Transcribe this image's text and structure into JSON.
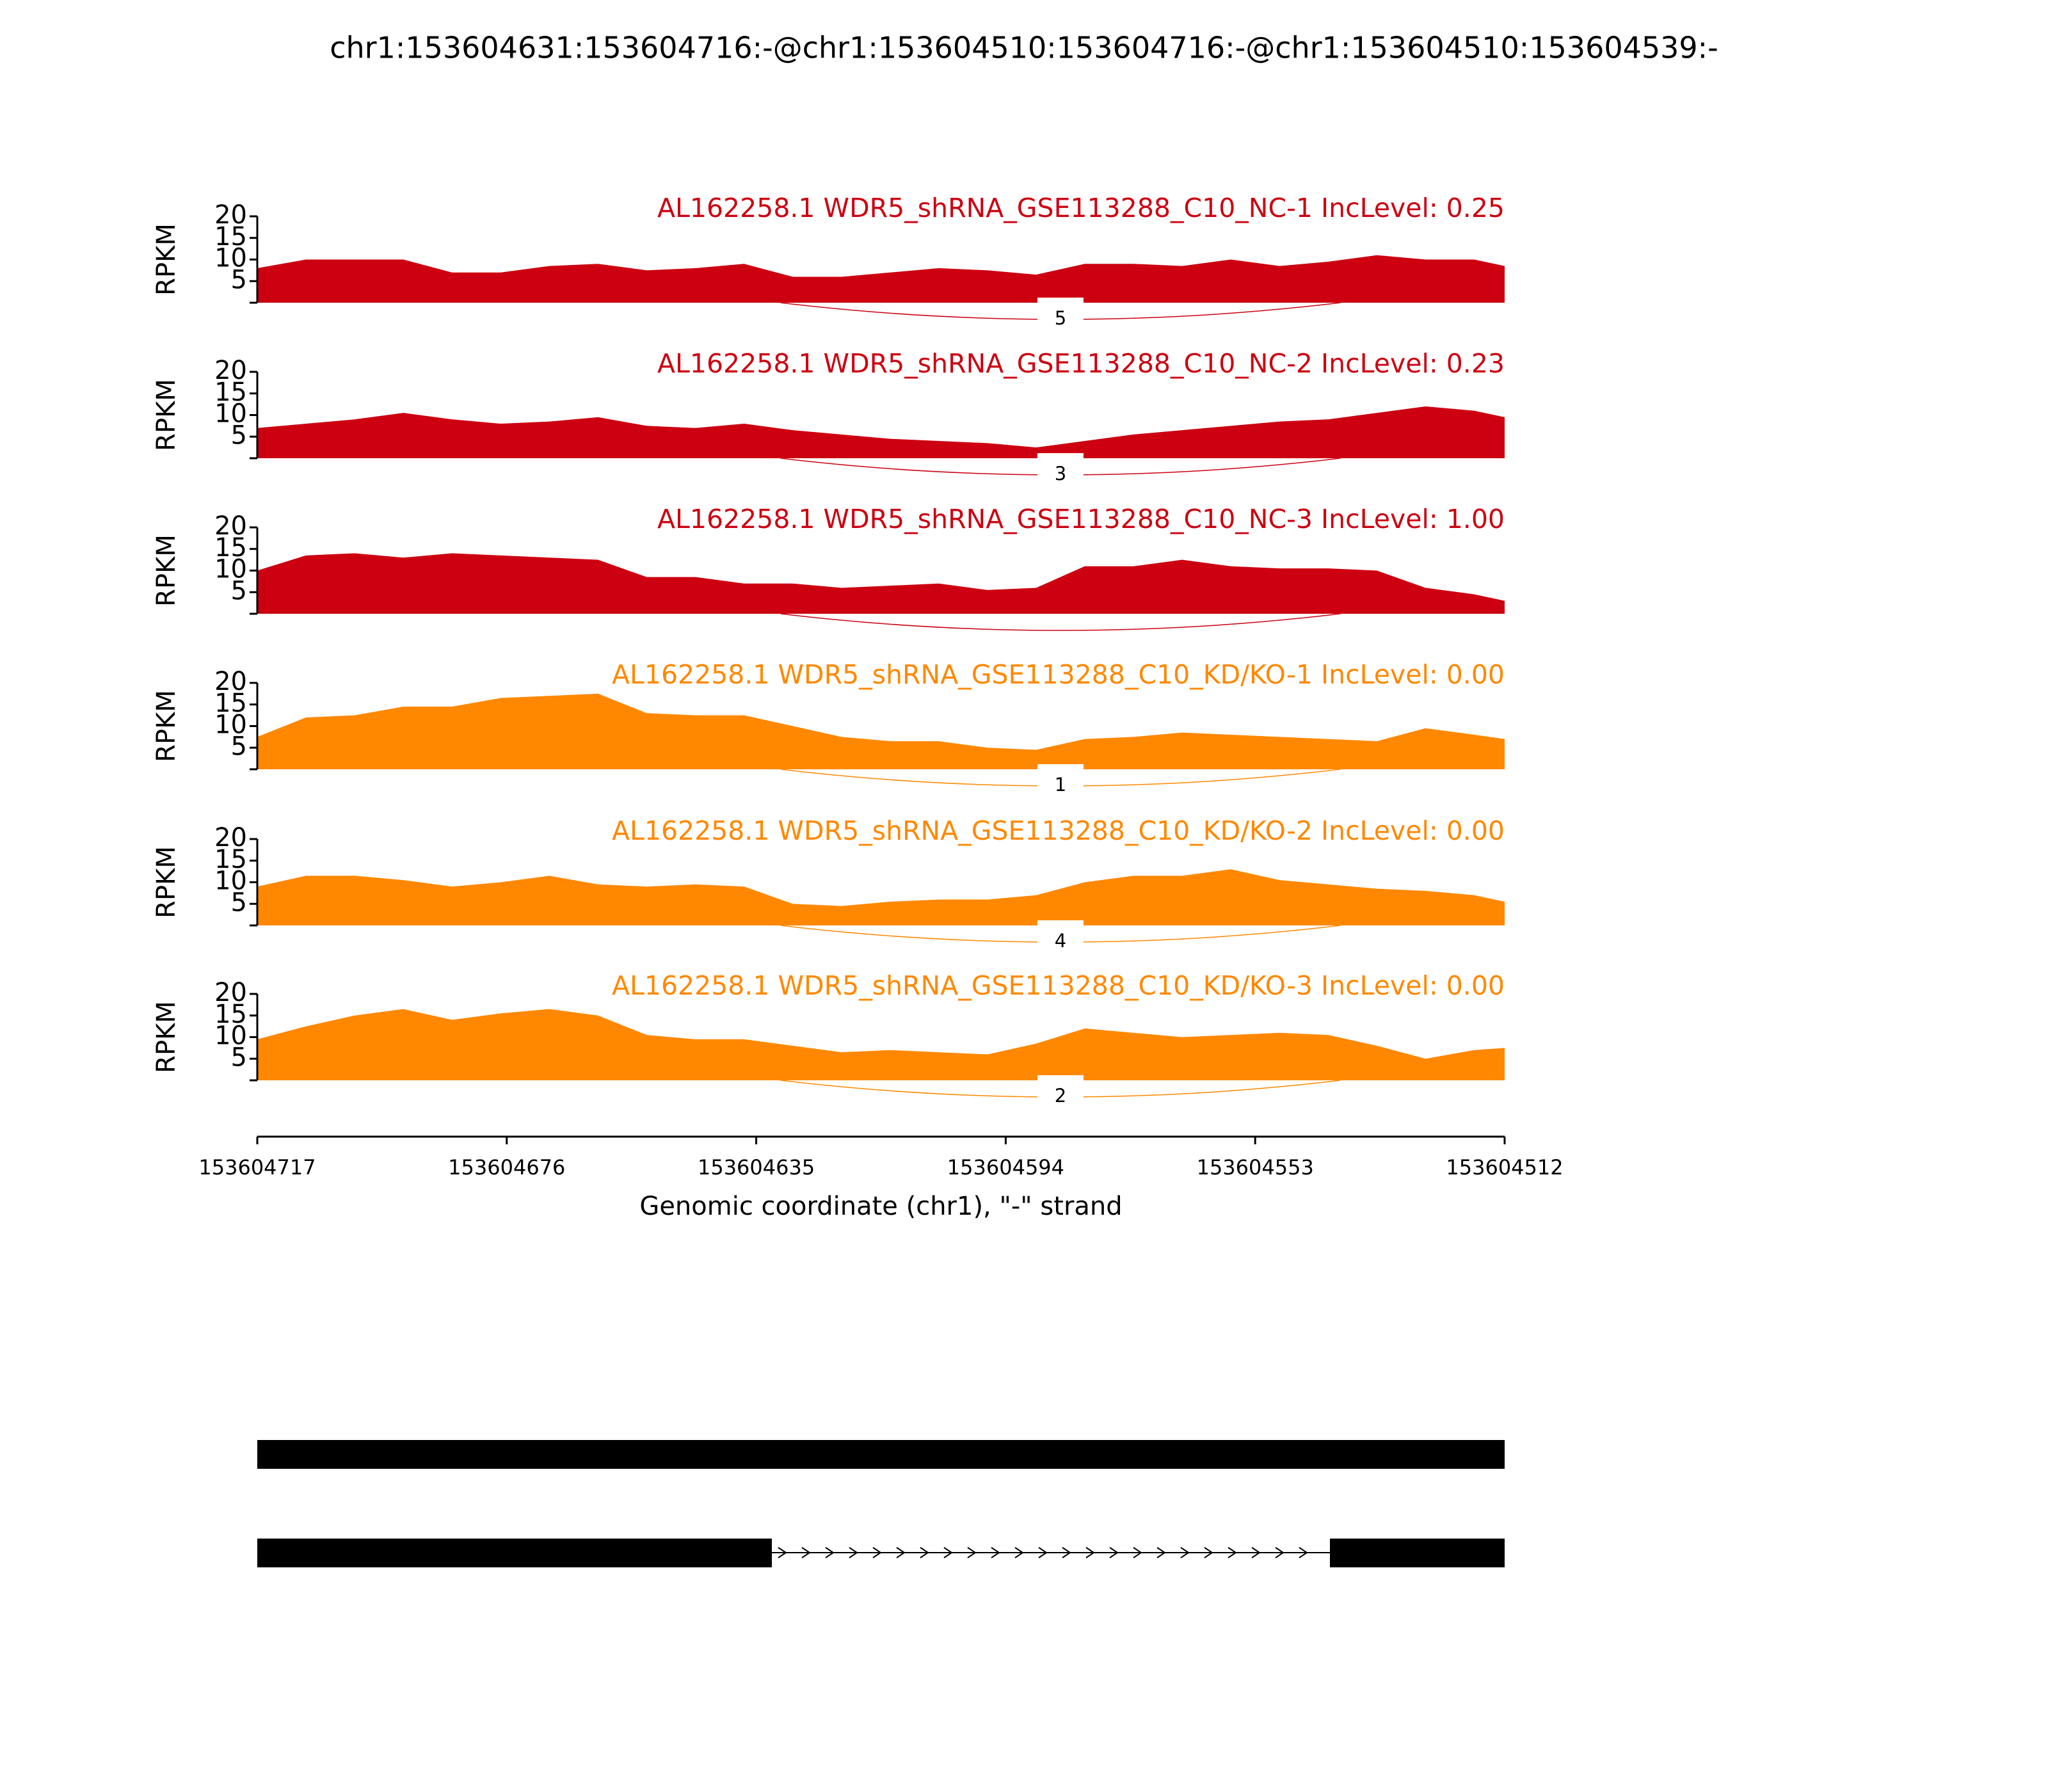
{
  "title": "chr1:153604631:153604716:-@chr1:153604510:153604716:-@chr1:153604510:153604539:-",
  "chart_data": [
    {
      "type": "area",
      "title": "AL162258.1 WDR5_shRNA_GSE113288_C10_NC-1 IncLevel: 0.25",
      "ylabel": "RPKM",
      "color": "#cc0011",
      "x": [
        153604717,
        153604709,
        153604701,
        153604693,
        153604685,
        153604677,
        153604669,
        153604661,
        153604653,
        153604645,
        153604637,
        153604629,
        153604621,
        153604613,
        153604605,
        153604597,
        153604589,
        153604581,
        153604573,
        153604565,
        153604557,
        153604549,
        153604541,
        153604533,
        153604525,
        153604517,
        153604512
      ],
      "values": [
        8,
        10,
        10,
        10,
        7,
        7,
        8.5,
        9,
        7.5,
        8,
        9,
        6,
        6,
        7,
        8,
        7.5,
        6.5,
        9,
        9,
        8.5,
        10,
        8.5,
        9.5,
        11,
        10,
        10,
        8.5
      ],
      "ylim": [
        0,
        20
      ],
      "yticks": [
        5,
        10,
        15,
        20
      ],
      "junction_count": 5,
      "junction_x": [
        153604631,
        153604539
      ]
    },
    {
      "type": "area",
      "title": "AL162258.1 WDR5_shRNA_GSE113288_C10_NC-2 IncLevel: 0.23",
      "ylabel": "RPKM",
      "color": "#cc0011",
      "x": [
        153604717,
        153604709,
        153604701,
        153604693,
        153604685,
        153604677,
        153604669,
        153604661,
        153604653,
        153604645,
        153604637,
        153604629,
        153604621,
        153604613,
        153604605,
        153604597,
        153604589,
        153604581,
        153604573,
        153604565,
        153604557,
        153604549,
        153604541,
        153604533,
        153604525,
        153604517,
        153604512
      ],
      "values": [
        7,
        8,
        9,
        10.5,
        9,
        8,
        8.5,
        9.5,
        7.5,
        7,
        8,
        6.5,
        5.5,
        4.5,
        4,
        3.5,
        2.5,
        4,
        5.5,
        6.5,
        7.5,
        8.5,
        9,
        10.5,
        12,
        11,
        9.5
      ],
      "ylim": [
        0,
        20
      ],
      "yticks": [
        5,
        10,
        15,
        20
      ],
      "junction_count": 3,
      "junction_x": [
        153604631,
        153604539
      ]
    },
    {
      "type": "area",
      "title": "AL162258.1 WDR5_shRNA_GSE113288_C10_NC-3 IncLevel: 1.00",
      "ylabel": "RPKM",
      "color": "#cc0011",
      "x": [
        153604717,
        153604709,
        153604701,
        153604693,
        153604685,
        153604677,
        153604669,
        153604661,
        153604653,
        153604645,
        153604637,
        153604629,
        153604621,
        153604613,
        153604605,
        153604597,
        153604589,
        153604581,
        153604573,
        153604565,
        153604557,
        153604549,
        153604541,
        153604533,
        153604525,
        153604517,
        153604512
      ],
      "values": [
        10,
        13.5,
        14,
        13,
        14,
        13.5,
        13,
        12.5,
        8.5,
        8.5,
        7,
        7,
        6,
        6.5,
        7,
        5.5,
        6,
        11,
        11,
        12.5,
        11,
        10.5,
        10.5,
        10,
        6,
        4.5,
        3
      ],
      "ylim": [
        0,
        20
      ],
      "yticks": [
        5,
        10,
        15,
        20
      ],
      "junction_count": null,
      "junction_x": [
        153604631,
        153604539
      ]
    },
    {
      "type": "area",
      "title": "AL162258.1 WDR5_shRNA_GSE113288_C10_KD/KO-1 IncLevel: 0.00",
      "ylabel": "RPKM",
      "color": "#ff8800",
      "x": [
        153604717,
        153604709,
        153604701,
        153604693,
        153604685,
        153604677,
        153604669,
        153604661,
        153604653,
        153604645,
        153604637,
        153604629,
        153604621,
        153604613,
        153604605,
        153604597,
        153604589,
        153604581,
        153604573,
        153604565,
        153604557,
        153604549,
        153604541,
        153604533,
        153604525,
        153604517,
        153604512
      ],
      "values": [
        7.5,
        12,
        12.5,
        14.5,
        14.5,
        16.5,
        17,
        17.5,
        13,
        12.5,
        12.5,
        10,
        7.5,
        6.5,
        6.5,
        5,
        4.5,
        7,
        7.5,
        8.5,
        8,
        7.5,
        7,
        6.5,
        9.5,
        8,
        7
      ],
      "ylim": [
        0,
        20
      ],
      "yticks": [
        5,
        10,
        15,
        20
      ],
      "junction_count": 1,
      "junction_x": [
        153604631,
        153604539
      ]
    },
    {
      "type": "area",
      "title": "AL162258.1 WDR5_shRNA_GSE113288_C10_KD/KO-2 IncLevel: 0.00",
      "ylabel": "RPKM",
      "color": "#ff8800",
      "x": [
        153604717,
        153604709,
        153604701,
        153604693,
        153604685,
        153604677,
        153604669,
        153604661,
        153604653,
        153604645,
        153604637,
        153604629,
        153604621,
        153604613,
        153604605,
        153604597,
        153604589,
        153604581,
        153604573,
        153604565,
        153604557,
        153604549,
        153604541,
        153604533,
        153604525,
        153604517,
        153604512
      ],
      "values": [
        9,
        11.5,
        11.5,
        10.5,
        9,
        10,
        11.5,
        9.5,
        9,
        9.5,
        9,
        5,
        4.5,
        5.5,
        6,
        6,
        7,
        10,
        11.5,
        11.5,
        13,
        10.5,
        9.5,
        8.5,
        8,
        7,
        5.5
      ],
      "ylim": [
        0,
        20
      ],
      "yticks": [
        5,
        10,
        15,
        20
      ],
      "junction_count": 4,
      "junction_x": [
        153604631,
        153604539
      ]
    },
    {
      "type": "area",
      "title": "AL162258.1 WDR5_shRNA_GSE113288_C10_KD/KO-3 IncLevel: 0.00",
      "ylabel": "RPKM",
      "color": "#ff8800",
      "x": [
        153604717,
        153604709,
        153604701,
        153604693,
        153604685,
        153604677,
        153604669,
        153604661,
        153604653,
        153604645,
        153604637,
        153604629,
        153604621,
        153604613,
        153604605,
        153604597,
        153604589,
        153604581,
        153604573,
        153604565,
        153604557,
        153604549,
        153604541,
        153604533,
        153604525,
        153604517,
        153604512
      ],
      "values": [
        9.5,
        12.5,
        15,
        16.5,
        14,
        15.5,
        16.5,
        15,
        10.5,
        9.5,
        9.5,
        8,
        6.5,
        7,
        6.5,
        6,
        8.5,
        12,
        11,
        10,
        10.5,
        11,
        10.5,
        8,
        5,
        7,
        7.5
      ],
      "ylim": [
        0,
        20
      ],
      "yticks": [
        5,
        10,
        15,
        20
      ],
      "junction_count": 2,
      "junction_x": [
        153604631,
        153604539
      ],
      "xlabel": "Genomic coordinate (chr1), \"-\" strand",
      "xlim": [
        153604717,
        153604512
      ],
      "xticks": [
        153604717,
        153604676,
        153604635,
        153604594,
        153604553,
        153604512
      ]
    }
  ]
}
